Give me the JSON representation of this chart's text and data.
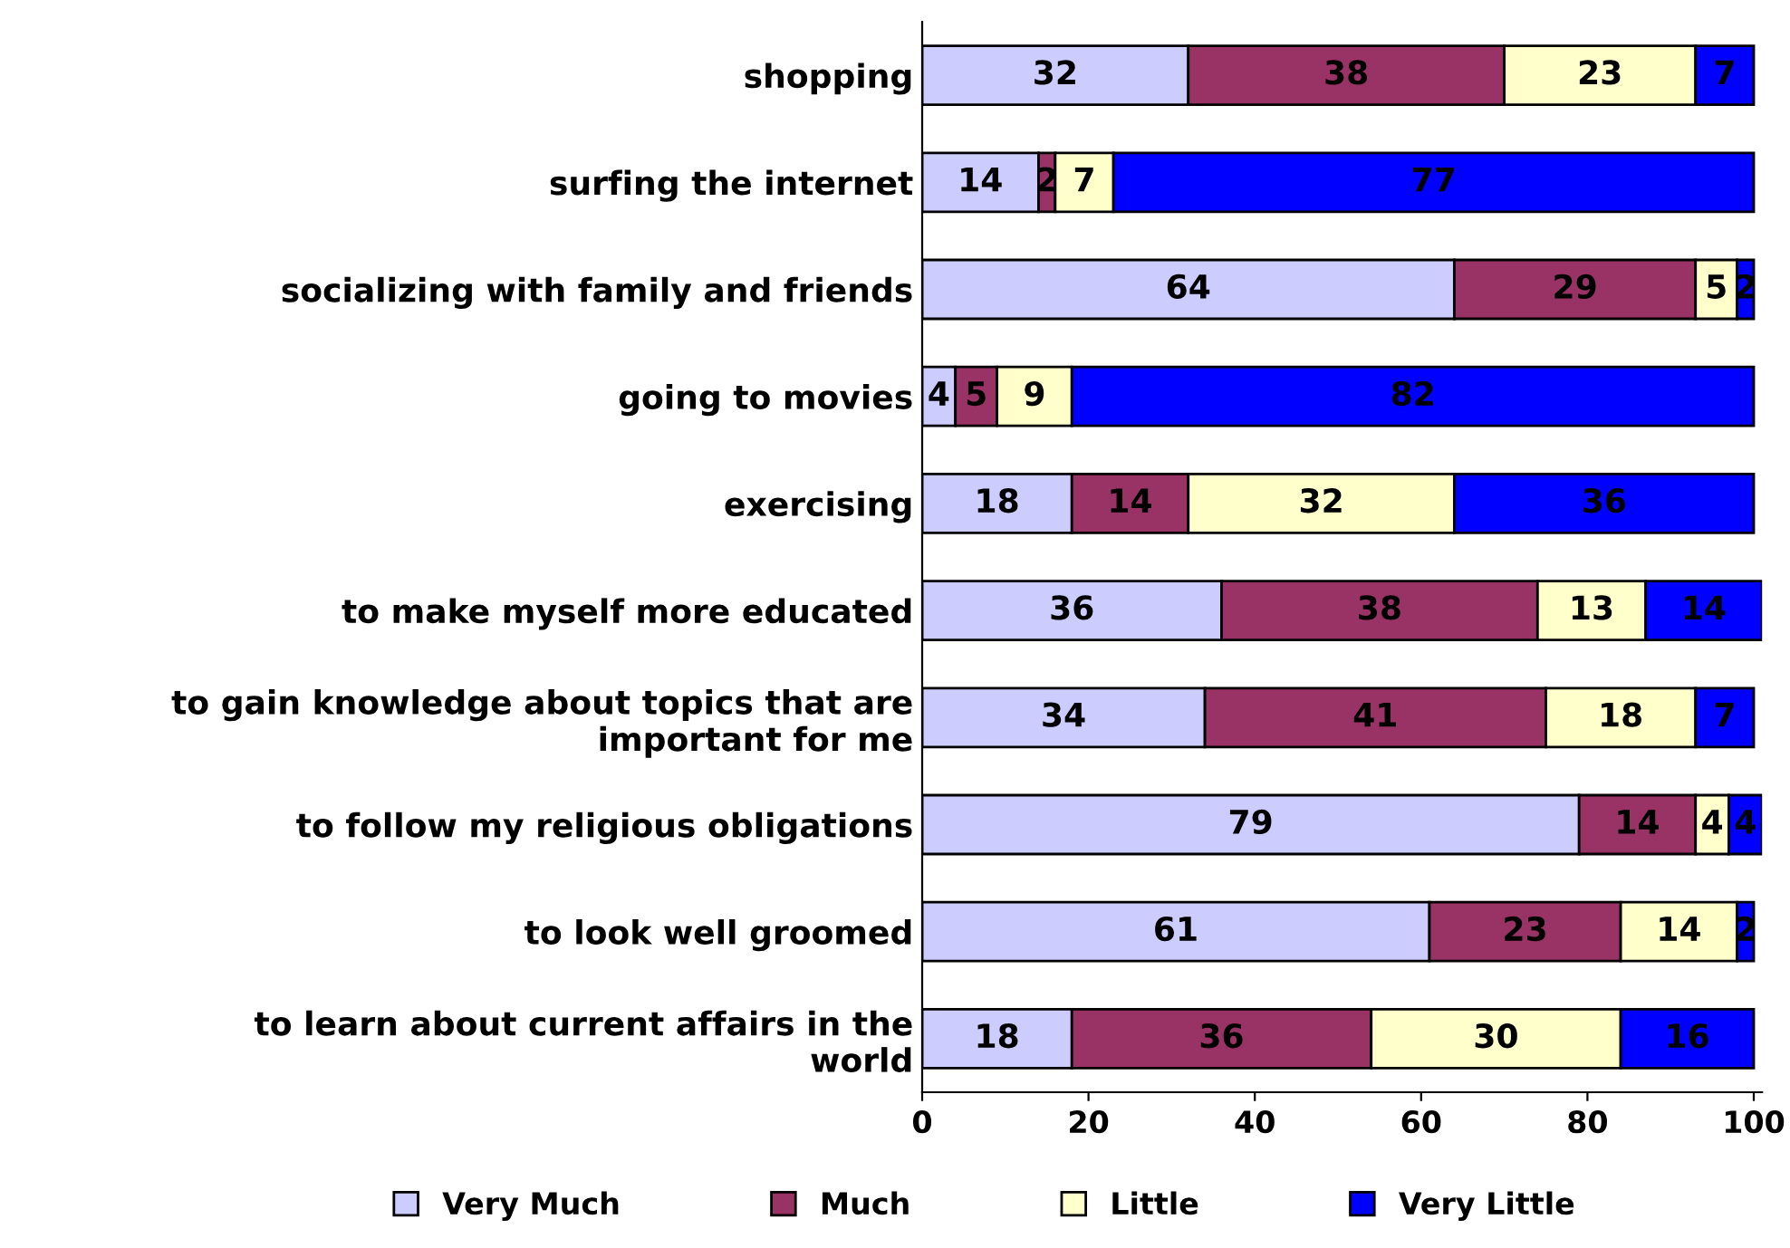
{
  "chart_data": {
    "type": "bar",
    "orientation": "horizontal",
    "stacked": true,
    "data_labels": true,
    "categories": [
      "shopping",
      "surfing the internet",
      "socializing with family and friends",
      "going to movies",
      "exercising",
      "to make myself more educated",
      "to gain knowledge about topics that are\nimportant for me",
      "to follow my religious obligations",
      "to look well groomed",
      "to learn about current affairs in the\nworld"
    ],
    "series": [
      {
        "name": "Very Much",
        "color": "#ccccff",
        "values": [
          32,
          14,
          64,
          4,
          18,
          36,
          34,
          79,
          61,
          18
        ]
      },
      {
        "name": "Much",
        "color": "#993366",
        "values": [
          38,
          2,
          29,
          5,
          14,
          38,
          41,
          14,
          23,
          36
        ]
      },
      {
        "name": "Little",
        "color": "#ffffcc",
        "values": [
          23,
          7,
          5,
          9,
          32,
          13,
          18,
          4,
          14,
          30
        ]
      },
      {
        "name": "Very Little",
        "color": "#0000ff",
        "values": [
          7,
          77,
          2,
          82,
          36,
          14,
          7,
          4,
          2,
          16
        ]
      }
    ],
    "xlim": [
      0,
      101
    ],
    "xticks": [
      0,
      20,
      40,
      60,
      80,
      100
    ],
    "grid": false,
    "legend": "bottom"
  }
}
